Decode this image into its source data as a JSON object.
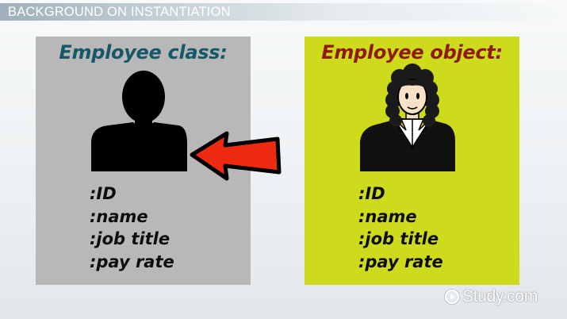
{
  "header": {
    "title": "BACKGROUND ON INSTANTIATION"
  },
  "class_panel": {
    "title": "Employee class:",
    "attributes": [
      ":ID",
      ":name",
      ":job title",
      ":pay rate"
    ]
  },
  "object_panel": {
    "title": "Employee object:",
    "attributes": [
      ":ID",
      ":name",
      ":job title",
      ":pay rate"
    ]
  },
  "watermark": {
    "text": "Study.com",
    "icon": "play-circle-icon"
  },
  "colors": {
    "class_panel_bg": "#b8b8b8",
    "object_panel_bg": "#cddb1c",
    "class_title": "#165868",
    "object_title": "#8e1b10",
    "arrow": "#ee2a10"
  }
}
